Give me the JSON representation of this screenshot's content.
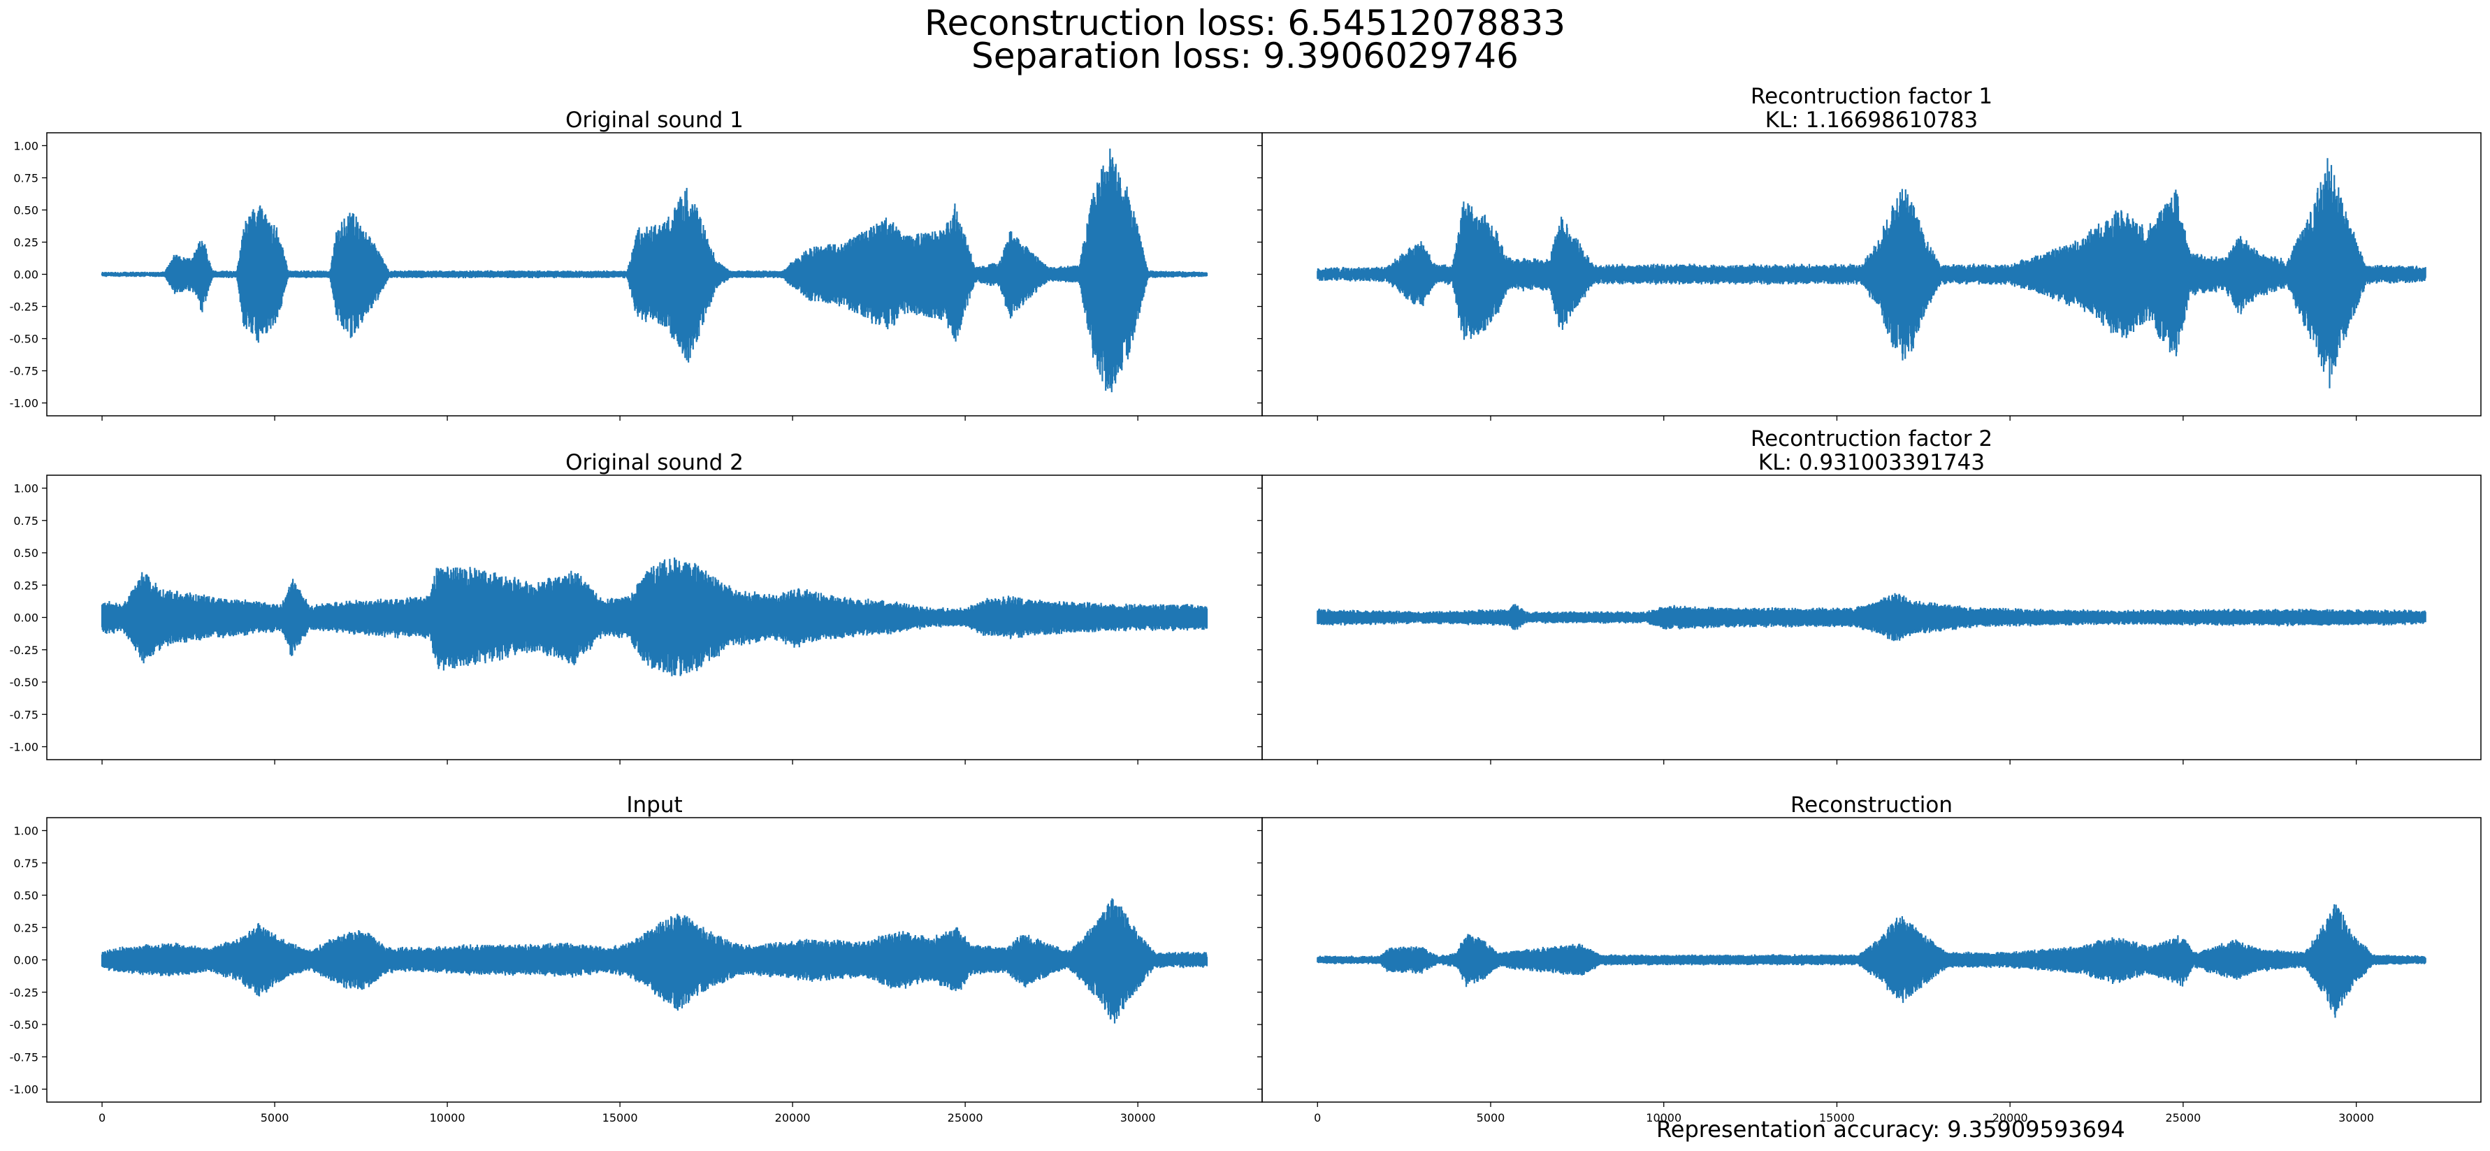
{
  "figure": {
    "title_line1": "Reconstruction loss: 6.54512078833",
    "title_line2": "Separation loss: 9.3906029746",
    "footer": "Representation accuracy: 9.35909593694"
  },
  "chart_data": [
    {
      "type": "line",
      "title": "Original sound 1",
      "xlim": [
        -1600,
        33600
      ],
      "ylim": [
        -1.1,
        1.1
      ],
      "xticks": [
        "0",
        "5000",
        "10000",
        "15000",
        "20000",
        "25000",
        "30000"
      ],
      "yticks": [
        "1.00",
        "0.75",
        "0.50",
        "0.25",
        "0.00",
        "-0.25",
        "-0.50",
        "-0.75",
        "-1.00"
      ],
      "show_xtick_labels": false,
      "show_ytick_labels": true,
      "color": "#1f77b4",
      "seed": 11,
      "noise": 0.012,
      "envelope": [
        [
          0,
          0.01
        ],
        [
          1800,
          0.01
        ],
        [
          2100,
          0.15
        ],
        [
          2600,
          0.12
        ],
        [
          2900,
          0.3
        ],
        [
          3200,
          0.02
        ],
        [
          3900,
          0.02
        ],
        [
          4100,
          0.4
        ],
        [
          4500,
          0.55
        ],
        [
          5100,
          0.35
        ],
        [
          5400,
          0.02
        ],
        [
          6600,
          0.02
        ],
        [
          6800,
          0.35
        ],
        [
          7200,
          0.5
        ],
        [
          8000,
          0.2
        ],
        [
          8300,
          0.02
        ],
        [
          15200,
          0.02
        ],
        [
          15500,
          0.35
        ],
        [
          16300,
          0.4
        ],
        [
          17000,
          0.7
        ],
        [
          17800,
          0.1
        ],
        [
          18200,
          0.02
        ],
        [
          19700,
          0.02
        ],
        [
          20000,
          0.1
        ],
        [
          20500,
          0.2
        ],
        [
          21500,
          0.25
        ],
        [
          22800,
          0.45
        ],
        [
          23200,
          0.3
        ],
        [
          24400,
          0.35
        ],
        [
          24700,
          0.55
        ],
        [
          25000,
          0.3
        ],
        [
          25300,
          0.05
        ],
        [
          26000,
          0.1
        ],
        [
          26300,
          0.35
        ],
        [
          26800,
          0.2
        ],
        [
          27400,
          0.05
        ],
        [
          28300,
          0.06
        ],
        [
          28700,
          0.65
        ],
        [
          29200,
          1.0
        ],
        [
          29800,
          0.6
        ],
        [
          30300,
          0.02
        ],
        [
          32000,
          0.01
        ]
      ]
    },
    {
      "type": "line",
      "title": "Recontruction factor 1\nKL: 1.16698610783",
      "xlim": [
        -1600,
        33600
      ],
      "ylim": [
        -1.1,
        1.1
      ],
      "xticks": [
        "0",
        "5000",
        "10000",
        "15000",
        "20000",
        "25000",
        "30000"
      ],
      "yticks": [
        "1.00",
        "0.75",
        "0.50",
        "0.25",
        "0.00",
        "-0.25",
        "-0.50",
        "-0.75",
        "-1.00"
      ],
      "show_xtick_labels": false,
      "show_ytick_labels": false,
      "color": "#1f77b4",
      "seed": 23,
      "noise": 0.035,
      "envelope": [
        [
          0,
          0.02
        ],
        [
          2000,
          0.03
        ],
        [
          2500,
          0.15
        ],
        [
          3000,
          0.25
        ],
        [
          3400,
          0.05
        ],
        [
          3900,
          0.05
        ],
        [
          4200,
          0.55
        ],
        [
          4800,
          0.45
        ],
        [
          5200,
          0.3
        ],
        [
          5500,
          0.1
        ],
        [
          6700,
          0.1
        ],
        [
          7000,
          0.45
        ],
        [
          7500,
          0.25
        ],
        [
          8000,
          0.05
        ],
        [
          15700,
          0.05
        ],
        [
          16200,
          0.25
        ],
        [
          16600,
          0.55
        ],
        [
          17000,
          0.7
        ],
        [
          17600,
          0.25
        ],
        [
          18000,
          0.05
        ],
        [
          20000,
          0.05
        ],
        [
          21000,
          0.15
        ],
        [
          22000,
          0.25
        ],
        [
          23200,
          0.5
        ],
        [
          24000,
          0.35
        ],
        [
          24800,
          0.65
        ],
        [
          25200,
          0.15
        ],
        [
          26200,
          0.1
        ],
        [
          26600,
          0.3
        ],
        [
          27200,
          0.15
        ],
        [
          28000,
          0.08
        ],
        [
          28700,
          0.5
        ],
        [
          29200,
          0.9
        ],
        [
          29800,
          0.4
        ],
        [
          30300,
          0.05
        ],
        [
          32000,
          0.03
        ]
      ]
    },
    {
      "type": "line",
      "title": "Original sound 2",
      "xlim": [
        -1600,
        33600
      ],
      "ylim": [
        -1.1,
        1.1
      ],
      "xticks": [
        "0",
        "5000",
        "10000",
        "15000",
        "20000",
        "25000",
        "30000"
      ],
      "yticks": [
        "1.00",
        "0.75",
        "0.50",
        "0.25",
        "0.00",
        "-0.25",
        "-0.50",
        "-0.75",
        "-1.00"
      ],
      "show_xtick_labels": false,
      "show_ytick_labels": true,
      "color": "#1f77b4",
      "seed": 37,
      "noise": 0.03,
      "envelope": [
        [
          0,
          0.12
        ],
        [
          600,
          0.08
        ],
        [
          1200,
          0.35
        ],
        [
          1800,
          0.2
        ],
        [
          3000,
          0.15
        ],
        [
          4200,
          0.12
        ],
        [
          5200,
          0.08
        ],
        [
          5500,
          0.3
        ],
        [
          6000,
          0.08
        ],
        [
          7800,
          0.12
        ],
        [
          9500,
          0.15
        ],
        [
          9700,
          0.4
        ],
        [
          11000,
          0.35
        ],
        [
          12500,
          0.25
        ],
        [
          13700,
          0.35
        ],
        [
          14500,
          0.12
        ],
        [
          15300,
          0.15
        ],
        [
          15700,
          0.35
        ],
        [
          16500,
          0.45
        ],
        [
          17200,
          0.4
        ],
        [
          18300,
          0.2
        ],
        [
          19600,
          0.15
        ],
        [
          20000,
          0.22
        ],
        [
          21000,
          0.15
        ],
        [
          23000,
          0.1
        ],
        [
          24000,
          0.05
        ],
        [
          25000,
          0.05
        ],
        [
          25500,
          0.12
        ],
        [
          26300,
          0.15
        ],
        [
          27000,
          0.12
        ],
        [
          28000,
          0.1
        ],
        [
          29500,
          0.08
        ],
        [
          30600,
          0.08
        ],
        [
          32000,
          0.08
        ]
      ]
    },
    {
      "type": "line",
      "title": "Recontruction factor 2\nKL: 0.931003391743",
      "xlim": [
        -1600,
        33600
      ],
      "ylim": [
        -1.1,
        1.1
      ],
      "xticks": [
        "0",
        "5000",
        "10000",
        "15000",
        "20000",
        "25000",
        "30000"
      ],
      "yticks": [
        "1.00",
        "0.75",
        "0.50",
        "0.25",
        "0.00",
        "-0.25",
        "-0.50",
        "-0.75",
        "-1.00"
      ],
      "show_xtick_labels": false,
      "show_ytick_labels": false,
      "color": "#1f77b4",
      "seed": 41,
      "noise": 0.02,
      "envelope": [
        [
          0,
          0.05
        ],
        [
          3000,
          0.03
        ],
        [
          5500,
          0.05
        ],
        [
          5700,
          0.1
        ],
        [
          6000,
          0.03
        ],
        [
          9500,
          0.03
        ],
        [
          10000,
          0.08
        ],
        [
          12000,
          0.06
        ],
        [
          15500,
          0.06
        ],
        [
          16000,
          0.1
        ],
        [
          16700,
          0.18
        ],
        [
          17200,
          0.12
        ],
        [
          19000,
          0.06
        ],
        [
          21000,
          0.05
        ],
        [
          23000,
          0.04
        ],
        [
          26000,
          0.05
        ],
        [
          29000,
          0.05
        ],
        [
          32000,
          0.04
        ]
      ]
    },
    {
      "type": "line",
      "title": "Input",
      "xlim": [
        -1600,
        33600
      ],
      "ylim": [
        -1.1,
        1.1
      ],
      "xticks": [
        "0",
        "5000",
        "10000",
        "15000",
        "20000",
        "25000",
        "30000"
      ],
      "yticks": [
        "1.00",
        "0.75",
        "0.50",
        "0.25",
        "0.00",
        "-0.25",
        "-0.50",
        "-0.75",
        "-1.00"
      ],
      "show_xtick_labels": true,
      "show_ytick_labels": true,
      "color": "#1f77b4",
      "seed": 53,
      "noise": 0.025,
      "envelope": [
        [
          0,
          0.06
        ],
        [
          1200,
          0.1
        ],
        [
          2000,
          0.12
        ],
        [
          3000,
          0.08
        ],
        [
          4000,
          0.15
        ],
        [
          4500,
          0.28
        ],
        [
          5200,
          0.15
        ],
        [
          6000,
          0.06
        ],
        [
          7000,
          0.2
        ],
        [
          7600,
          0.22
        ],
        [
          8300,
          0.08
        ],
        [
          9600,
          0.08
        ],
        [
          10500,
          0.1
        ],
        [
          12000,
          0.1
        ],
        [
          13500,
          0.12
        ],
        [
          14600,
          0.08
        ],
        [
          15300,
          0.12
        ],
        [
          16000,
          0.25
        ],
        [
          16700,
          0.38
        ],
        [
          17500,
          0.22
        ],
        [
          18500,
          0.1
        ],
        [
          19800,
          0.12
        ],
        [
          20500,
          0.15
        ],
        [
          22000,
          0.12
        ],
        [
          23000,
          0.22
        ],
        [
          24000,
          0.15
        ],
        [
          24800,
          0.25
        ],
        [
          25200,
          0.1
        ],
        [
          26200,
          0.08
        ],
        [
          26700,
          0.2
        ],
        [
          27300,
          0.12
        ],
        [
          28000,
          0.05
        ],
        [
          28800,
          0.28
        ],
        [
          29300,
          0.5
        ],
        [
          29900,
          0.25
        ],
        [
          30500,
          0.04
        ],
        [
          32000,
          0.04
        ]
      ]
    },
    {
      "type": "line",
      "title": "Reconstruction",
      "xlim": [
        -1600,
        33600
      ],
      "ylim": [
        -1.1,
        1.1
      ],
      "xticks": [
        "0",
        "5000",
        "10000",
        "15000",
        "20000",
        "25000",
        "30000"
      ],
      "yticks": [
        "1.00",
        "0.75",
        "0.50",
        "0.25",
        "0.00",
        "-0.25",
        "-0.50",
        "-0.75",
        "-1.00"
      ],
      "show_xtick_labels": true,
      "show_ytick_labels": false,
      "color": "#1f77b4",
      "seed": 67,
      "noise": 0.015,
      "envelope": [
        [
          0,
          0.02
        ],
        [
          1800,
          0.02
        ],
        [
          2000,
          0.08
        ],
        [
          3000,
          0.1
        ],
        [
          3500,
          0.02
        ],
        [
          4000,
          0.05
        ],
        [
          4300,
          0.2
        ],
        [
          4800,
          0.15
        ],
        [
          5200,
          0.05
        ],
        [
          7000,
          0.1
        ],
        [
          7600,
          0.12
        ],
        [
          8200,
          0.03
        ],
        [
          15600,
          0.03
        ],
        [
          16200,
          0.15
        ],
        [
          16800,
          0.35
        ],
        [
          17500,
          0.2
        ],
        [
          18200,
          0.05
        ],
        [
          20000,
          0.05
        ],
        [
          22000,
          0.1
        ],
        [
          23000,
          0.18
        ],
        [
          24000,
          0.1
        ],
        [
          25000,
          0.2
        ],
        [
          25300,
          0.05
        ],
        [
          26500,
          0.15
        ],
        [
          27200,
          0.08
        ],
        [
          28500,
          0.05
        ],
        [
          29000,
          0.25
        ],
        [
          29400,
          0.45
        ],
        [
          29900,
          0.2
        ],
        [
          30500,
          0.03
        ],
        [
          32000,
          0.02
        ]
      ]
    }
  ]
}
